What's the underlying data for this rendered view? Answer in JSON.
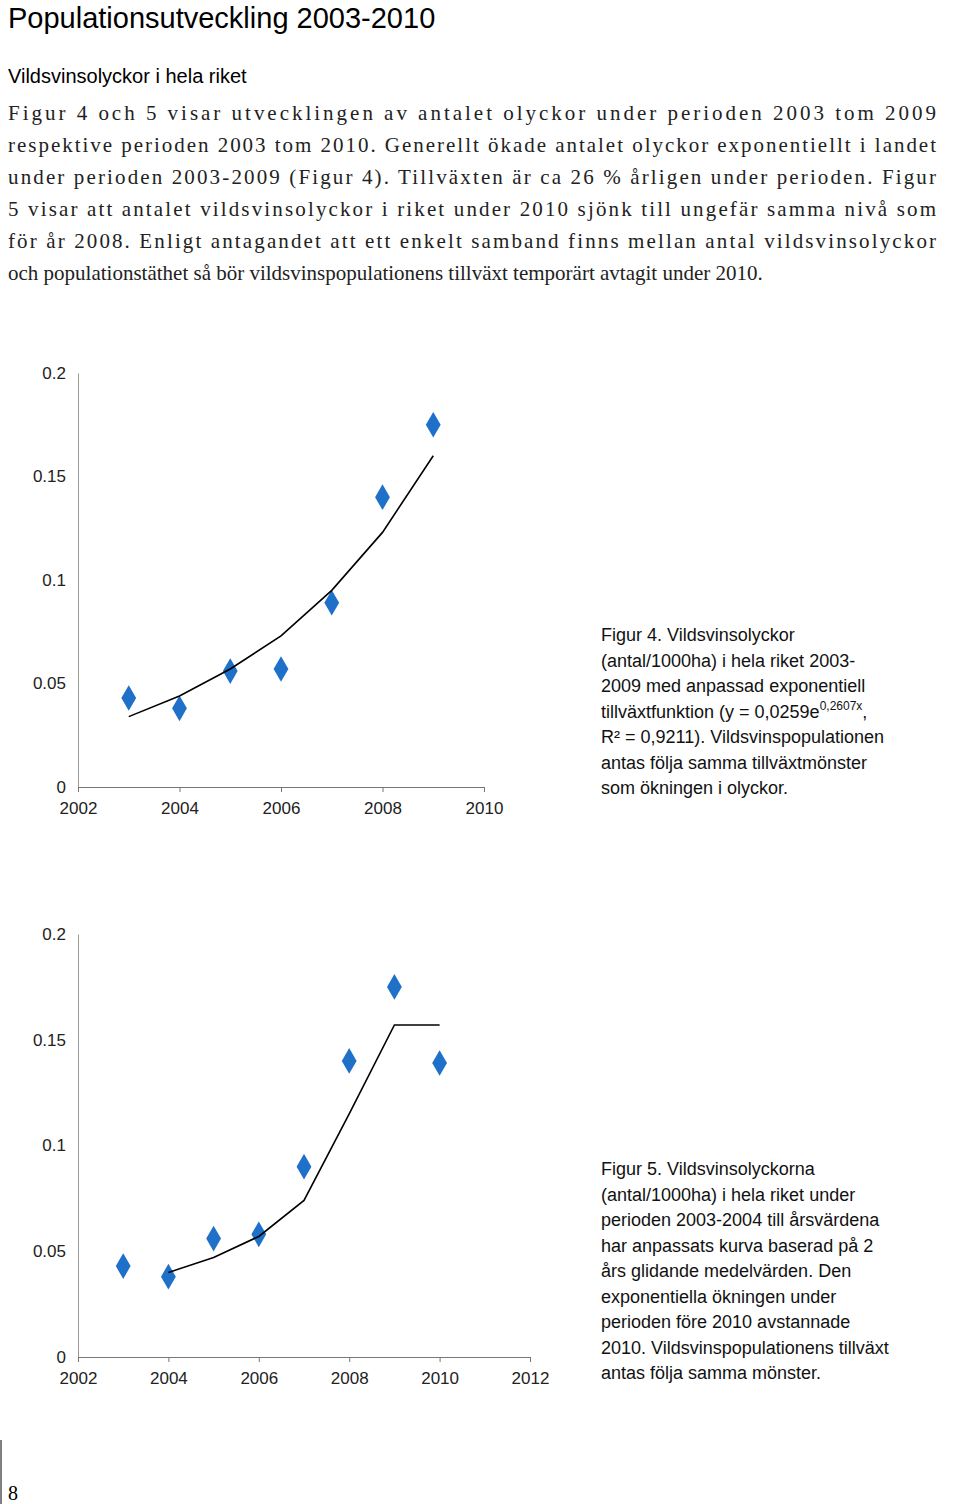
{
  "heading": "Populationsutveckling 2003-2010",
  "subheading": "Vildsvinsolyckor i hela riket",
  "body": [
    "Figur 4 och 5 visar utvecklingen av antalet olyckor under perioden 2003 tom 2009",
    "respektive perioden 2003 tom 2010. Generellt ökade antalet olyckor exponentiellt i landet",
    "under perioden 2003-2009 (Figur 4). Tillväxten är ca 26 % årligen under perioden. Figur",
    "5 visar att antalet vildsvinsolyckor i riket under 2010 sjönk till ungefär samma nivå som",
    "för år 2008. Enligt antagandet att ett enkelt samband finns mellan antal vildsvinsolyckor",
    "och populationstäthet så bör vildsvinspopulationens tillväxt temporärt avtagit under 2010."
  ],
  "page_number": "8",
  "chart_data": [
    {
      "type": "scatter",
      "x": [
        2003,
        2004,
        2005,
        2006,
        2007,
        2008,
        2009
      ],
      "xlim": [
        2002,
        2010
      ],
      "xticks": [
        2002,
        2004,
        2006,
        2008,
        2010
      ],
      "ylim": [
        0,
        0.2
      ],
      "yticks": [
        0,
        0.05,
        0.1,
        0.15,
        0.2
      ],
      "series": [
        {
          "type": "scatter",
          "marker": "diamond",
          "color": "#1f70c8",
          "values": [
            0.043,
            0.038,
            0.056,
            0.057,
            0.089,
            0.14,
            0.175
          ]
        },
        {
          "type": "line",
          "line_style": "solid",
          "color": "#000000",
          "values": [
            0.034,
            0.044,
            0.057,
            0.073,
            0.095,
            0.123,
            0.16
          ]
        }
      ],
      "caption": [
        "Figur 4. Vildsvinsolyckor",
        "(antal/1000ha) i hela riket 2003-",
        "2009 med anpassad exponentiell",
        [
          "tillväxtfunktion (y = 0,0259e",
          "0,2607x",
          ","
        ],
        "R² = 0,9211). Vildsvinspopulationen",
        "antas följa samma tillväxtmönster",
        "som ökningen i olyckor."
      ]
    },
    {
      "type": "scatter",
      "x": [
        2003,
        2004,
        2005,
        2006,
        2007,
        2008,
        2009,
        2010
      ],
      "xlim": [
        2002,
        2012
      ],
      "xticks": [
        2002,
        2004,
        2006,
        2008,
        2010,
        2012
      ],
      "ylim": [
        0,
        0.2
      ],
      "yticks": [
        0,
        0.05,
        0.1,
        0.15,
        0.2
      ],
      "series": [
        {
          "type": "scatter",
          "marker": "diamond",
          "color": "#1f70c8",
          "values": [
            0.043,
            0.038,
            0.056,
            0.058,
            0.09,
            0.14,
            0.175,
            0.139
          ]
        },
        {
          "type": "line",
          "line_style": "solid",
          "color": "#000000",
          "values": [
            null,
            0.04,
            0.047,
            0.057,
            0.074,
            0.115,
            0.157,
            0.157
          ]
        }
      ],
      "caption": [
        "Figur 5. Vildsvinsolyckorna",
        "(antal/1000ha) i hela riket under",
        "perioden 2003-2004 till årsvärdena",
        "har anpassats kurva baserad på 2",
        "års glidande medelvärden. Den",
        "exponentiella ökningen under",
        "perioden före 2010 avstannade",
        "2010. Vildsvinspopulationens tillväxt",
        "antas följa samma mönster."
      ]
    }
  ]
}
